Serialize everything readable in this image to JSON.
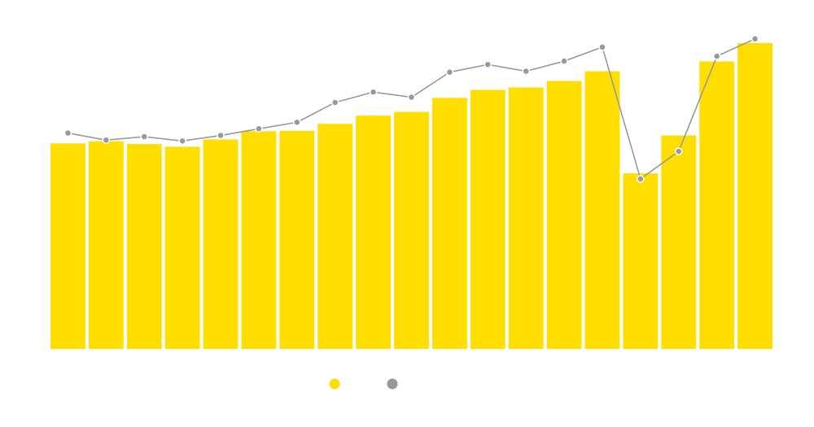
{
  "colors": {
    "bar": "#FFDE00",
    "line": "#999999",
    "background": "#FFFFFF"
  },
  "chart_data": {
    "type": "bar",
    "title": "",
    "xlabel": "",
    "ylabel": "",
    "ylim": [
      0,
      100
    ],
    "grid": false,
    "legend_position": "bottom-center",
    "categories": [
      "",
      "",
      "",
      "",
      "",
      "",
      "",
      "",
      "",
      "",
      "",
      "",
      "",
      "",
      "",
      "",
      "",
      "",
      ""
    ],
    "series": [
      {
        "type": "bar",
        "color": "#FFDE00",
        "values": [
          67.2,
          67.9,
          67.0,
          66.1,
          68.5,
          71.2,
          71.3,
          73.6,
          76.3,
          77.5,
          82.1,
          84.7,
          85.5,
          87.6,
          90.8,
          57.4,
          69.8,
          94.0,
          100.0
        ]
      },
      {
        "type": "line",
        "color": "#999999",
        "values": [
          70.6,
          68.3,
          69.4,
          68.0,
          69.8,
          72.0,
          74.1,
          80.6,
          84.0,
          82.3,
          90.5,
          93.0,
          90.8,
          94.1,
          98.7,
          55.6,
          64.6,
          95.7,
          101.4
        ]
      }
    ]
  }
}
